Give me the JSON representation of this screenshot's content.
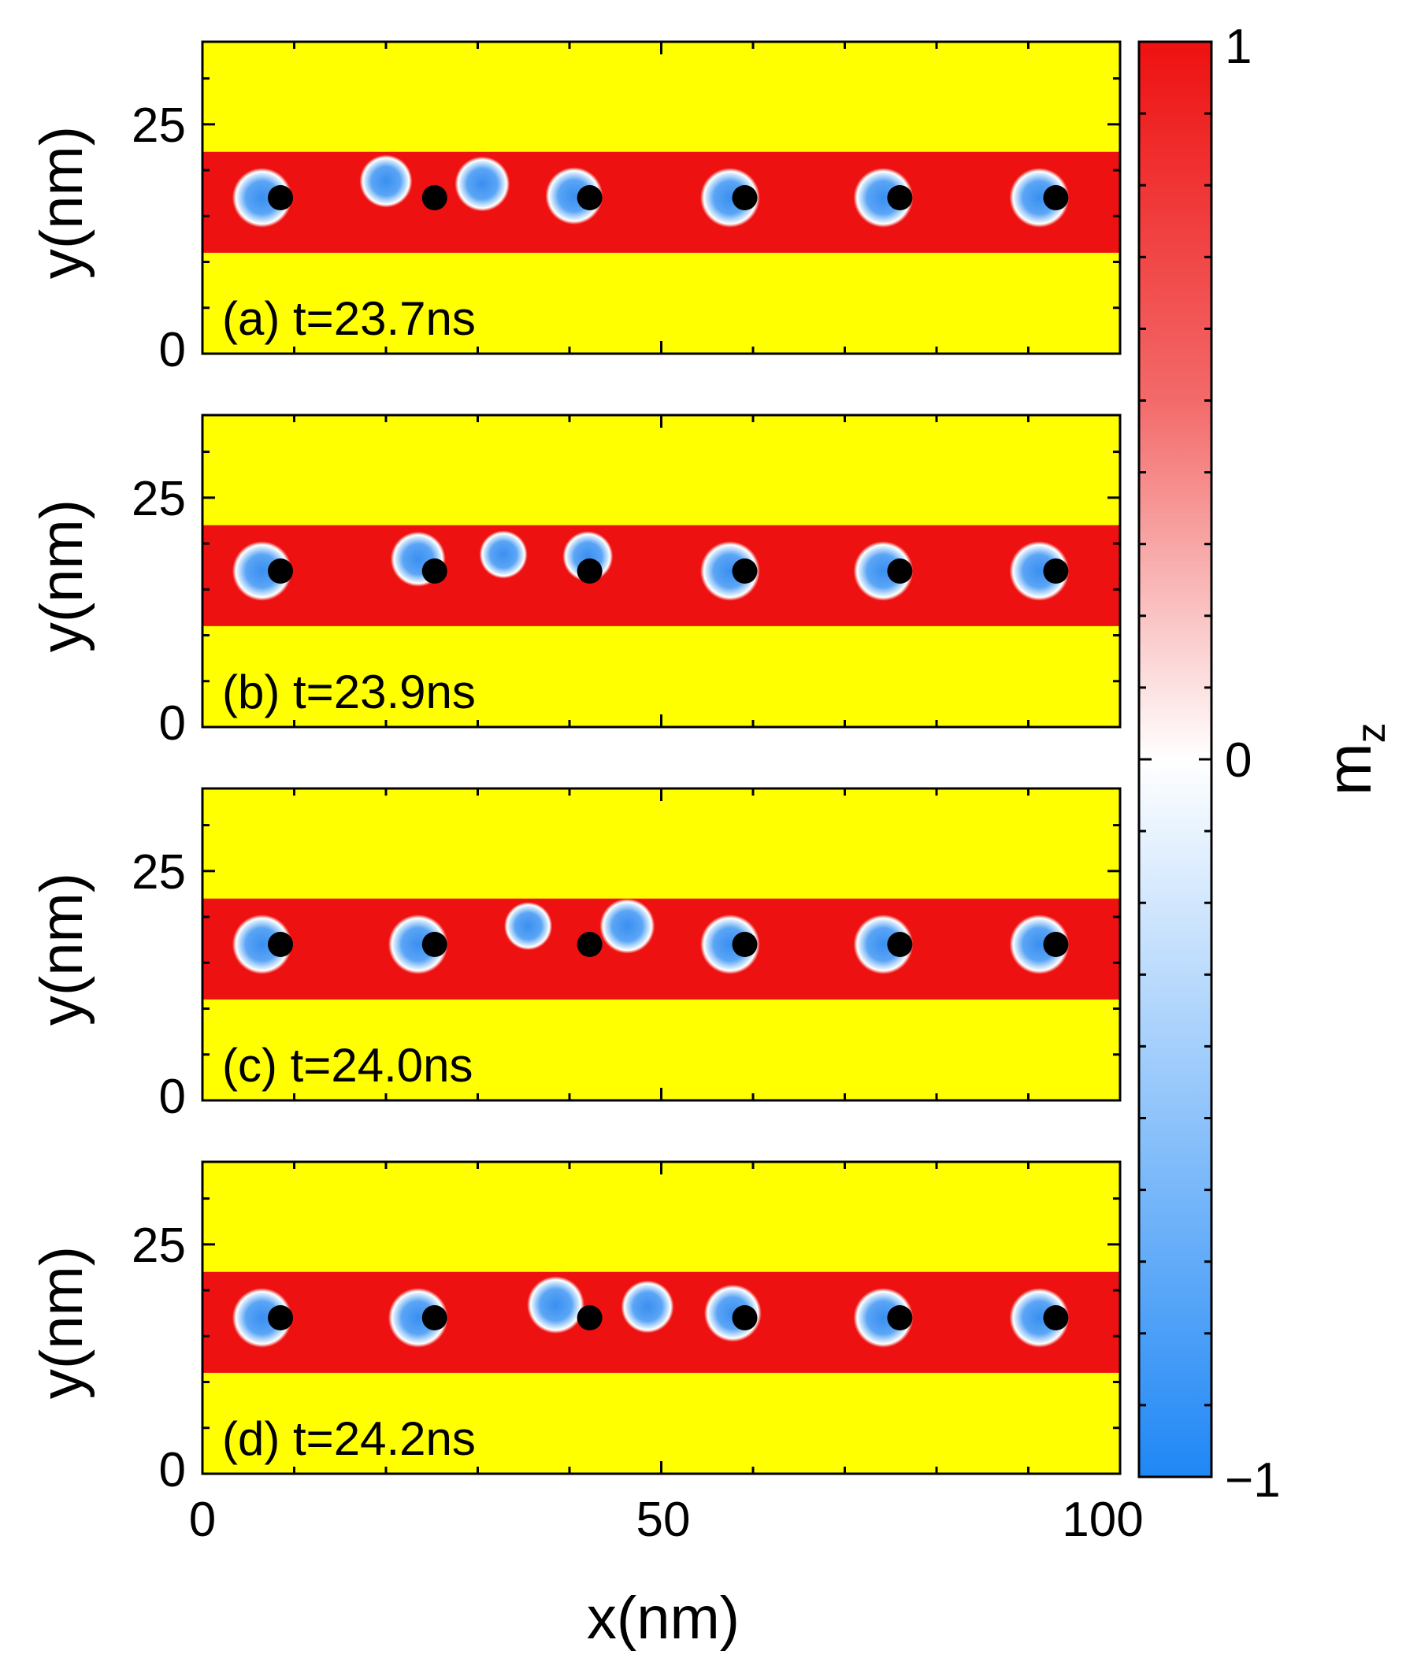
{
  "chart_data": {
    "type": "heatmap",
    "title": "",
    "xlabel": "x(nm)",
    "ylabel": "y(nm)",
    "xlim": [
      0,
      100
    ],
    "ylim": [
      0,
      34
    ],
    "xticks": [
      "0",
      "50",
      "100"
    ],
    "yticks": [
      "0",
      "25"
    ],
    "colorbar": {
      "label": "m_z",
      "label_main": "m",
      "label_sub": "z",
      "range": [
        -1,
        1
      ],
      "ticks": [
        "1",
        "0",
        "−1"
      ],
      "colors": {
        "max": "#ee1111",
        "mid": "#ffffff",
        "min": "#1f87f5"
      }
    },
    "colors": {
      "background": "#ffff00",
      "track": "#ee1111",
      "skyrmion_core": "#3a8ff0",
      "defect": "#000000"
    },
    "track": {
      "y_min": 11.0,
      "y_max": 22.0
    },
    "panels": [
      {
        "label": "(a) t=23.7ns",
        "defects": [
          8.5,
          25.3,
          42.2,
          59.1,
          76.0,
          93.0
        ],
        "skyrmions": [
          {
            "x": 6.5,
            "y": 17.0,
            "r": 2.6
          },
          {
            "x": 20.0,
            "y": 18.8,
            "r": 2.3
          },
          {
            "x": 30.5,
            "y": 18.5,
            "r": 2.4
          },
          {
            "x": 40.5,
            "y": 17.2,
            "r": 2.5
          },
          {
            "x": 57.5,
            "y": 17.0,
            "r": 2.6
          },
          {
            "x": 74.2,
            "y": 17.0,
            "r": 2.6
          },
          {
            "x": 91.2,
            "y": 17.0,
            "r": 2.6
          }
        ]
      },
      {
        "label": "(b) t=23.9ns",
        "defects": [
          8.5,
          25.3,
          42.2,
          59.1,
          76.0,
          93.0
        ],
        "skyrmions": [
          {
            "x": 6.5,
            "y": 17.0,
            "r": 2.6
          },
          {
            "x": 23.5,
            "y": 18.3,
            "r": 2.4
          },
          {
            "x": 32.8,
            "y": 18.8,
            "r": 2.1
          },
          {
            "x": 42.0,
            "y": 18.6,
            "r": 2.2
          },
          {
            "x": 57.5,
            "y": 17.0,
            "r": 2.6
          },
          {
            "x": 74.2,
            "y": 17.0,
            "r": 2.6
          },
          {
            "x": 91.2,
            "y": 17.0,
            "r": 2.6
          }
        ]
      },
      {
        "label": "(c) t=24.0ns",
        "defects": [
          8.5,
          25.3,
          42.2,
          59.1,
          76.0,
          93.0
        ],
        "skyrmions": [
          {
            "x": 6.5,
            "y": 17.0,
            "r": 2.6
          },
          {
            "x": 23.5,
            "y": 17.0,
            "r": 2.6
          },
          {
            "x": 35.5,
            "y": 19.0,
            "r": 2.1
          },
          {
            "x": 46.3,
            "y": 19.0,
            "r": 2.4
          },
          {
            "x": 57.5,
            "y": 17.0,
            "r": 2.6
          },
          {
            "x": 74.2,
            "y": 17.0,
            "r": 2.6
          },
          {
            "x": 91.2,
            "y": 17.0,
            "r": 2.6
          }
        ]
      },
      {
        "label": "(d) t=24.2ns",
        "defects": [
          8.5,
          25.3,
          42.2,
          59.1,
          76.0,
          93.0
        ],
        "skyrmions": [
          {
            "x": 6.5,
            "y": 17.0,
            "r": 2.6
          },
          {
            "x": 23.5,
            "y": 17.0,
            "r": 2.6
          },
          {
            "x": 38.5,
            "y": 18.4,
            "r": 2.5
          },
          {
            "x": 48.5,
            "y": 18.2,
            "r": 2.3
          },
          {
            "x": 57.8,
            "y": 17.5,
            "r": 2.5
          },
          {
            "x": 74.2,
            "y": 17.0,
            "r": 2.6
          },
          {
            "x": 91.2,
            "y": 17.0,
            "r": 2.6
          }
        ]
      }
    ]
  }
}
